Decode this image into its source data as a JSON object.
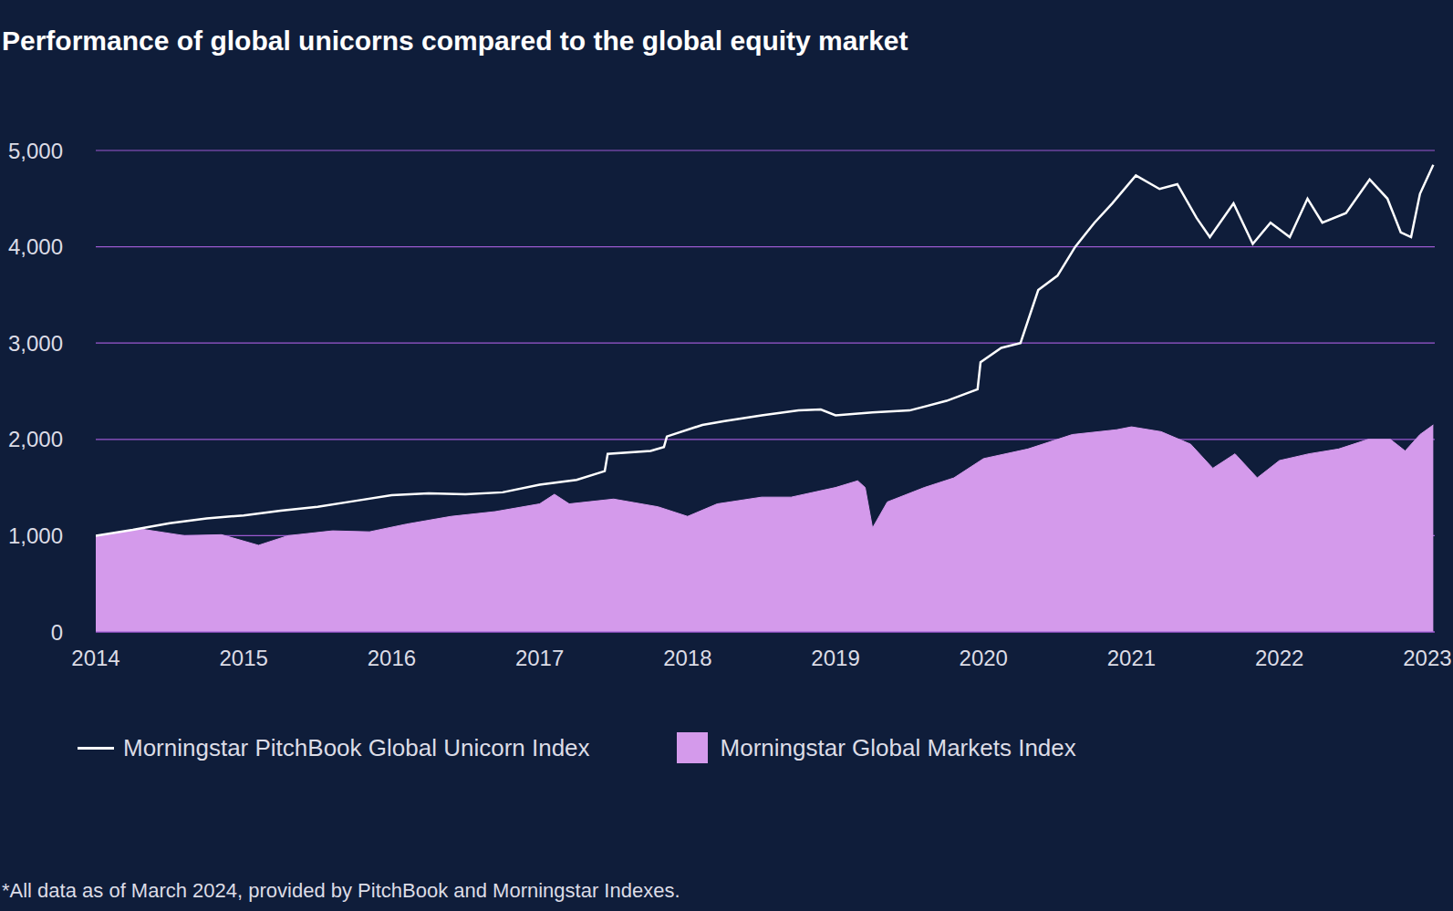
{
  "chart_data": {
    "type": "line",
    "title": "Performance of  global unicorns compared to the global equity market",
    "footnote": "*All data as of March 2024, provided by PitchBook and Morningstar Indexes.",
    "xlim": [
      2014,
      2023.05
    ],
    "xticks": [
      2014,
      2015,
      2016,
      2017,
      2018,
      2019,
      2020,
      2021,
      2022,
      2023
    ],
    "ylim": [
      0,
      5000
    ],
    "yticks": [
      0,
      {
        "value": 1000,
        "label": "1,000"
      },
      {
        "value": 2000,
        "label": "2,000"
      },
      {
        "value": 3000,
        "label": "3,000"
      },
      {
        "value": 4000,
        "label": "4,000"
      },
      {
        "value": 5000,
        "label": "5,000"
      }
    ],
    "grid": true,
    "legend": "bottom",
    "series": [
      {
        "name": "Morningstar PitchBook Global Unicorn Index",
        "type": "line",
        "color": "#ffffff",
        "x": [
          2014,
          2014.25,
          2014.5,
          2014.75,
          2015,
          2015.25,
          2015.5,
          2015.75,
          2016,
          2016.25,
          2016.5,
          2016.75,
          2017,
          2017.25,
          2017.44,
          2017.46,
          2017.75,
          2017.84,
          2017.86,
          2018.1,
          2018.25,
          2018.5,
          2018.75,
          2018.9,
          2019,
          2019.25,
          2019.5,
          2019.75,
          2019.96,
          2019.98,
          2020.12,
          2020.25,
          2020.37,
          2020.5,
          2020.62,
          2020.75,
          2020.87,
          2021.03,
          2021.19,
          2021.31,
          2021.44,
          2021.53,
          2021.69,
          2021.82,
          2021.94,
          2022.07,
          2022.19,
          2022.29,
          2022.45,
          2022.61,
          2022.73,
          2022.82,
          2022.89,
          2022.95,
          2023.04
        ],
        "values": [
          1000,
          1060,
          1130,
          1180,
          1210,
          1260,
          1300,
          1360,
          1420,
          1440,
          1430,
          1450,
          1530,
          1580,
          1670,
          1850,
          1880,
          1920,
          2030,
          2150,
          2190,
          2250,
          2300,
          2310,
          2250,
          2280,
          2300,
          2400,
          2520,
          2800,
          2950,
          3000,
          3550,
          3700,
          4000,
          4250,
          4450,
          4740,
          4600,
          4650,
          4300,
          4100,
          4450,
          4030,
          4250,
          4100,
          4500,
          4250,
          4350,
          4700,
          4500,
          4150,
          4100,
          4550,
          4850
        ]
      },
      {
        "name": "Morningstar Global Markets Index",
        "type": "area",
        "color": "#d49aeb",
        "x": [
          2014,
          2014.3,
          2014.6,
          2014.85,
          2015.1,
          2015.3,
          2015.6,
          2015.85,
          2016.1,
          2016.4,
          2016.7,
          2017,
          2017.1,
          2017.2,
          2017.5,
          2017.8,
          2018,
          2018.2,
          2018.5,
          2018.7,
          2019,
          2019.15,
          2019.2,
          2019.25,
          2019.35,
          2019.6,
          2019.8,
          2020,
          2020.3,
          2020.6,
          2020.9,
          2021,
          2021.2,
          2021.4,
          2021.55,
          2021.7,
          2021.85,
          2022,
          2022.2,
          2022.4,
          2022.6,
          2022.75,
          2022.85,
          2022.95,
          2023.04
        ],
        "values": [
          1000,
          1070,
          1000,
          1010,
          900,
          1000,
          1050,
          1040,
          1120,
          1200,
          1250,
          1330,
          1430,
          1330,
          1380,
          1300,
          1200,
          1330,
          1400,
          1400,
          1500,
          1570,
          1500,
          1080,
          1350,
          1500,
          1600,
          1800,
          1900,
          2050,
          2100,
          2130,
          2080,
          1950,
          1700,
          1850,
          1600,
          1780,
          1850,
          1900,
          2000,
          2000,
          1880,
          2050,
          2150
        ]
      }
    ]
  }
}
